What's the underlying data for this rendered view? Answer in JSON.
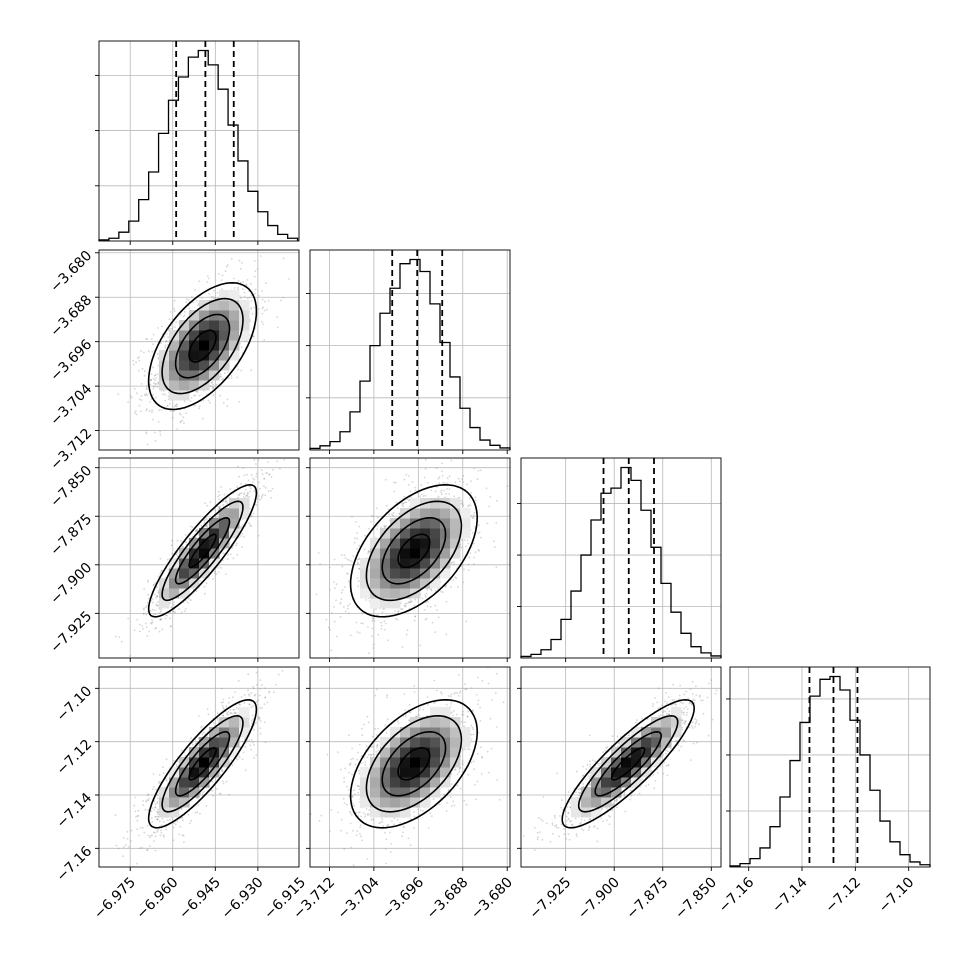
{
  "chart_data": {
    "type": "corner",
    "parameters": [
      {
        "ticks": [
          -6.975,
          -6.96,
          -6.945,
          -6.93,
          -6.915
        ],
        "tick_labels": [
          "−6.975",
          "−6.960",
          "−6.945",
          "−6.930",
          "−6.915"
        ],
        "range": [
          -6.986,
          -6.9155
        ],
        "quantiles": [
          -6.9588,
          -6.9485,
          -6.9385
        ],
        "bin_edges": [
          -6.986,
          -6.9825,
          -6.979,
          -6.9755,
          -6.972,
          -6.9685,
          -6.965,
          -6.9615,
          -6.958,
          -6.9545,
          -6.951,
          -6.9475,
          -6.944,
          -6.9405,
          -6.937,
          -6.9335,
          -6.93,
          -6.9265,
          -6.923,
          -6.9195,
          -6.916
        ],
        "counts": [
          2,
          5,
          16,
          36,
          75,
          125,
          195,
          255,
          297,
          333,
          345,
          319,
          275,
          210,
          145,
          90,
          53,
          28,
          12,
          5
        ]
      },
      {
        "ticks": [
          -3.712,
          -3.704,
          -3.696,
          -3.688,
          -3.68
        ],
        "tick_labels": [
          "−3.712",
          "−3.704",
          "−3.696",
          "−3.688",
          "−3.680"
        ],
        "range": [
          -3.7155,
          -3.6795
        ],
        "quantiles": [
          -3.7007,
          -3.6962,
          -3.6917
        ],
        "bin_edges": [
          -3.7155,
          -3.7137,
          -3.7119,
          -3.7101,
          -3.7083,
          -3.7065,
          -3.7047,
          -3.7029,
          -3.7011,
          -3.6993,
          -3.6975,
          -3.6957,
          -3.6939,
          -3.6921,
          -3.6903,
          -3.6885,
          -3.6867,
          -3.6849,
          -3.6831,
          -3.6813,
          -3.6795
        ],
        "counts": [
          3,
          8,
          16,
          35,
          73,
          132,
          200,
          262,
          310,
          357,
          365,
          342,
          280,
          206,
          140,
          80,
          43,
          19,
          9,
          4
        ]
      },
      {
        "ticks": [
          -7.925,
          -7.9,
          -7.875,
          -7.85
        ],
        "tick_labels": [
          "−7.925",
          "−7.900",
          "−7.875",
          "−7.850"
        ],
        "range": [
          -7.948,
          -7.845
        ],
        "quantiles": [
          -7.9055,
          -7.8925,
          -7.8795
        ],
        "bin_edges": [
          -7.948,
          -7.94285,
          -7.9377,
          -7.93255,
          -7.9274,
          -7.92225,
          -7.9171,
          -7.91195,
          -7.9068,
          -7.90165,
          -7.8965,
          -7.89135,
          -7.8862,
          -7.88105,
          -7.8759,
          -7.87075,
          -7.8656,
          -7.86045,
          -7.8553,
          -7.85015,
          -7.845
        ],
        "counts": [
          3,
          7,
          16,
          36,
          75,
          130,
          200,
          268,
          320,
          330,
          370,
          345,
          287,
          215,
          145,
          89,
          48,
          22,
          10,
          4
        ]
      },
      {
        "ticks": [
          -7.16,
          -7.14,
          -7.12,
          -7.1
        ],
        "tick_labels": [
          "−7.16",
          "−7.14",
          "−7.12",
          "−7.10"
        ],
        "range": [
          -7.167,
          -7.092
        ],
        "quantiles": [
          -7.1372,
          -7.1282,
          -7.1192
        ],
        "bin_edges": [
          -7.167,
          -7.16325,
          -7.1595,
          -7.15575,
          -7.152,
          -7.14825,
          -7.1445,
          -7.14075,
          -7.137,
          -7.13325,
          -7.1295,
          -7.12575,
          -7.122,
          -7.11825,
          -7.1145,
          -7.11075,
          -7.107,
          -7.10325,
          -7.0995,
          -7.09575,
          -7.092
        ],
        "counts": [
          2,
          6,
          15,
          34,
          72,
          125,
          190,
          258,
          305,
          335,
          340,
          316,
          262,
          200,
          137,
          82,
          45,
          22,
          9,
          4
        ]
      }
    ],
    "pairs": [
      {
        "x": 0,
        "y": 1,
        "mean": [
          -6.9495,
          -3.6968
        ],
        "sd": [
          0.0095,
          0.0057
        ],
        "rho": 0.55
      },
      {
        "x": 0,
        "y": 2,
        "mean": [
          -6.9495,
          -7.8928
        ],
        "sd": [
          0.0095,
          0.017
        ],
        "rho": 0.88
      },
      {
        "x": 1,
        "y": 2,
        "mean": [
          -3.6968,
          -7.8928
        ],
        "sd": [
          0.0057,
          0.017
        ],
        "rho": 0.5
      },
      {
        "x": 0,
        "y": 3,
        "mean": [
          -6.9495,
          -7.1283
        ],
        "sd": [
          0.0095,
          0.012
        ],
        "rho": 0.85
      },
      {
        "x": 1,
        "y": 3,
        "mean": [
          -3.6968,
          -7.1283
        ],
        "sd": [
          0.0057,
          0.012
        ],
        "rho": 0.5
      },
      {
        "x": 2,
        "y": 3,
        "mean": [
          -7.8928,
          -7.1283
        ],
        "sd": [
          0.017,
          0.012
        ],
        "rho": 0.87
      }
    ],
    "contour_levels_sigma": [
      0.5,
      1.0,
      1.5,
      2.0
    ],
    "grid": true
  }
}
